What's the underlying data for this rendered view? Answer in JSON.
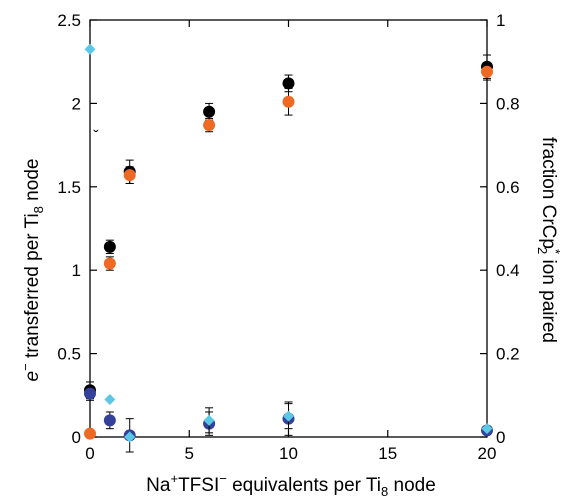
{
  "chart_data": {
    "type": "scatter",
    "xlabel": {
      "pre": "Na",
      "sup1": "+",
      "mid": "TFSI",
      "sup2": "−",
      "post": " equivalents per Ti",
      "sub": "8",
      "tail": " node"
    },
    "ylabel_left": {
      "italic": "e",
      "sup": "−",
      "post": " transferred per Ti",
      "sub": "8",
      "tail": " node"
    },
    "ylabel_right": {
      "pre": "fraction CrCp",
      "sup": "*",
      "sub": "2",
      "post": " ion paired"
    },
    "xlim": [
      0,
      20
    ],
    "ylim_left": [
      0,
      2.5
    ],
    "ylim_right": [
      0,
      1
    ],
    "x_ticks": [
      0,
      5,
      10,
      15,
      20
    ],
    "y_left_ticks": [
      0,
      0.5,
      1,
      1.5,
      2,
      2.5
    ],
    "y_right_ticks": [
      0,
      0.2,
      0.4,
      0.6,
      0.8,
      1
    ],
    "series": [
      {
        "axis": "left",
        "marker": "circle",
        "color": "#000000",
        "points": [
          {
            "x": 0,
            "y": 0.28,
            "err": 0.05
          },
          {
            "x": 1,
            "y": 1.14,
            "err": 0.04
          },
          {
            "x": 2,
            "y": 1.59,
            "err": 0.07
          },
          {
            "x": 6,
            "y": 1.95,
            "err": 0.05
          },
          {
            "x": 10,
            "y": 2.12,
            "err": 0.05
          },
          {
            "x": 20,
            "y": 2.22,
            "err": 0.07
          }
        ]
      },
      {
        "axis": "left",
        "marker": "circle",
        "color": "#ee6a24",
        "points": [
          {
            "x": 0,
            "y": 0.02,
            "err": 0
          },
          {
            "x": 1,
            "y": 1.04,
            "err": 0.04
          },
          {
            "x": 2,
            "y": 1.57,
            "err": 0.05
          },
          {
            "x": 6,
            "y": 1.87,
            "err": 0.04
          },
          {
            "x": 10,
            "y": 2.01,
            "err": 0.08
          },
          {
            "x": 20,
            "y": 2.19,
            "err": 0.05
          }
        ]
      },
      {
        "axis": "left",
        "marker": "circle",
        "color": "#33419a",
        "points": [
          {
            "x": 0,
            "y": 0.26,
            "err": 0.04
          },
          {
            "x": 1,
            "y": 0.1,
            "err": 0.05
          },
          {
            "x": 2,
            "y": 0.01,
            "err": 0.1
          },
          {
            "x": 6,
            "y": 0.08,
            "err": 0.07
          },
          {
            "x": 10,
            "y": 0.11,
            "err": 0.1
          },
          {
            "x": 20,
            "y": 0.04,
            "err": 0.02
          }
        ]
      },
      {
        "axis": "right",
        "marker": "diamond",
        "color": "#5bc8e6",
        "points": [
          {
            "x": 0,
            "y": 0.93,
            "err": 0
          },
          {
            "x": 1,
            "y": 0.09,
            "err": 0
          },
          {
            "x": 2,
            "y": 0.0,
            "err": 0
          },
          {
            "x": 6,
            "y": 0.04,
            "err": 0.03
          },
          {
            "x": 10,
            "y": 0.05,
            "err": 0.03
          },
          {
            "x": 20,
            "y": 0.02,
            "err": 0
          }
        ]
      }
    ],
    "annotations": [
      {
        "text": "ˇ",
        "x": 0.3,
        "y": 1.77
      }
    ]
  }
}
